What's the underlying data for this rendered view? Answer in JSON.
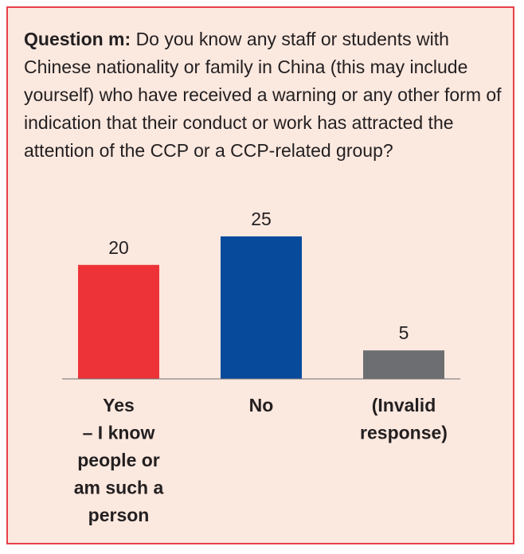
{
  "question": {
    "label": "Question m:",
    "text": "Do you know any staff or students with Chinese nationality or family in China (this may include yourself) who have received a warning or any other form of indication that their conduct or work has attracted the attention of the CCP or a CCP-related group?"
  },
  "chart_data": {
    "type": "bar",
    "title": "",
    "xlabel": "",
    "ylabel": "",
    "ylim": [
      0,
      25
    ],
    "grid": false,
    "categories": [
      [
        "Yes",
        "– I know",
        "people or",
        "am such a",
        "person"
      ],
      [
        "No"
      ],
      [
        "(Invalid",
        "response)"
      ]
    ],
    "values": [
      20,
      25,
      5
    ],
    "colors": [
      "#ee3338",
      "#074a9c",
      "#6d6e71"
    ]
  }
}
